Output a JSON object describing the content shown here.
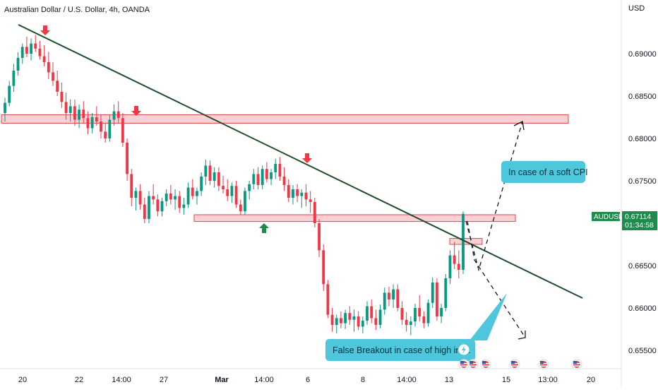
{
  "header": {
    "title": "Australian Dollar / U.S. Dollar, 4h, OANDA",
    "currency": "USD"
  },
  "chart_data": {
    "type": "candlestick",
    "symbol": "AUDUSD",
    "last_price": "0.67114",
    "countdown": "01:34:58",
    "ylim": [
      0.65,
      0.694
    ],
    "y_ticks": [
      "0.69000",
      "0.68500",
      "0.68000",
      "0.67500",
      "0.67000",
      "0.66500",
      "0.66000",
      "0.65500"
    ],
    "x_ticks": [
      "20",
      "22",
      "14:00",
      "27",
      "Mar",
      "14:00",
      "6",
      "8",
      "14:00",
      "13",
      "15",
      "13:00",
      "20"
    ],
    "candle_ohlc": [
      [
        0.683,
        0.6848,
        0.682,
        0.6842
      ],
      [
        0.6842,
        0.6868,
        0.6838,
        0.6862
      ],
      [
        0.6862,
        0.6888,
        0.6855,
        0.688
      ],
      [
        0.688,
        0.6902,
        0.6874,
        0.6895
      ],
      [
        0.6895,
        0.6912,
        0.6888,
        0.6908
      ],
      [
        0.6908,
        0.692,
        0.6896,
        0.69
      ],
      [
        0.69,
        0.6918,
        0.6892,
        0.6912
      ],
      [
        0.6912,
        0.6922,
        0.6902,
        0.6906
      ],
      [
        0.6906,
        0.6915,
        0.6893,
        0.6897
      ],
      [
        0.6897,
        0.691,
        0.6885,
        0.689
      ],
      [
        0.689,
        0.6902,
        0.687,
        0.6878
      ],
      [
        0.6878,
        0.689,
        0.6862,
        0.6868
      ],
      [
        0.6868,
        0.688,
        0.685,
        0.6855
      ],
      [
        0.6855,
        0.6866,
        0.6836,
        0.6843
      ],
      [
        0.6843,
        0.6854,
        0.6822,
        0.683
      ],
      [
        0.683,
        0.6846,
        0.682,
        0.6838
      ],
      [
        0.6838,
        0.6846,
        0.6815,
        0.6822
      ],
      [
        0.6822,
        0.684,
        0.6812,
        0.6834
      ],
      [
        0.6834,
        0.6844,
        0.6818,
        0.6824
      ],
      [
        0.6824,
        0.6832,
        0.6805,
        0.6812
      ],
      [
        0.6812,
        0.683,
        0.6806,
        0.6825
      ],
      [
        0.6825,
        0.6838,
        0.6815,
        0.682
      ],
      [
        0.682,
        0.6828,
        0.68,
        0.6808
      ],
      [
        0.6808,
        0.6818,
        0.6795,
        0.68
      ],
      [
        0.68,
        0.6828,
        0.6796,
        0.6822
      ],
      [
        0.6822,
        0.684,
        0.6815,
        0.6832
      ],
      [
        0.6832,
        0.6844,
        0.6818,
        0.6824
      ],
      [
        0.6824,
        0.683,
        0.679,
        0.6795
      ],
      [
        0.6795,
        0.68,
        0.675,
        0.6758
      ],
      [
        0.6758,
        0.6764,
        0.672,
        0.673
      ],
      [
        0.673,
        0.6742,
        0.6715,
        0.6738
      ],
      [
        0.6738,
        0.6746,
        0.6716,
        0.6722
      ],
      [
        0.6722,
        0.673,
        0.67,
        0.6705
      ],
      [
        0.6705,
        0.6738,
        0.67,
        0.6732
      ],
      [
        0.6732,
        0.6746,
        0.6722,
        0.6728
      ],
      [
        0.6728,
        0.6734,
        0.6708,
        0.6714
      ],
      [
        0.6714,
        0.673,
        0.6708,
        0.6726
      ],
      [
        0.6726,
        0.674,
        0.672,
        0.6735
      ],
      [
        0.6735,
        0.6745,
        0.6722,
        0.6728
      ],
      [
        0.6728,
        0.674,
        0.6716,
        0.6732
      ],
      [
        0.6732,
        0.6738,
        0.6712,
        0.6718
      ],
      [
        0.6718,
        0.673,
        0.671,
        0.6722
      ],
      [
        0.6722,
        0.6748,
        0.6718,
        0.6742
      ],
      [
        0.6742,
        0.6752,
        0.6728,
        0.6732
      ],
      [
        0.6732,
        0.6742,
        0.6722,
        0.6738
      ],
      [
        0.6738,
        0.676,
        0.6732,
        0.6755
      ],
      [
        0.6755,
        0.6775,
        0.6745,
        0.6768
      ],
      [
        0.6768,
        0.6774,
        0.6745,
        0.675
      ],
      [
        0.675,
        0.6766,
        0.6742,
        0.676
      ],
      [
        0.676,
        0.6766,
        0.6738,
        0.6744
      ],
      [
        0.6744,
        0.6756,
        0.6735,
        0.674
      ],
      [
        0.674,
        0.6752,
        0.6726,
        0.6732
      ],
      [
        0.6732,
        0.6748,
        0.6724,
        0.6744
      ],
      [
        0.6744,
        0.675,
        0.6718,
        0.6722
      ],
      [
        0.6722,
        0.6728,
        0.671,
        0.6714
      ],
      [
        0.6714,
        0.6742,
        0.671,
        0.6738
      ],
      [
        0.6738,
        0.675,
        0.6728,
        0.6746
      ],
      [
        0.6746,
        0.6764,
        0.674,
        0.6758
      ],
      [
        0.6758,
        0.6766,
        0.674,
        0.6745
      ],
      [
        0.6745,
        0.6768,
        0.674,
        0.6764
      ],
      [
        0.6764,
        0.6772,
        0.6748,
        0.6752
      ],
      [
        0.6752,
        0.6764,
        0.6745,
        0.676
      ],
      [
        0.676,
        0.6776,
        0.6752,
        0.677
      ],
      [
        0.677,
        0.6778,
        0.675,
        0.6755
      ],
      [
        0.6755,
        0.6766,
        0.6738,
        0.6745
      ],
      [
        0.6745,
        0.6752,
        0.6725,
        0.673
      ],
      [
        0.673,
        0.6745,
        0.6722,
        0.674
      ],
      [
        0.674,
        0.6746,
        0.6725,
        0.6732
      ],
      [
        0.6732,
        0.674,
        0.6718,
        0.6736
      ],
      [
        0.6736,
        0.6746,
        0.672,
        0.6728
      ],
      [
        0.6728,
        0.6738,
        0.6712,
        0.6725
      ],
      [
        0.6725,
        0.673,
        0.6695,
        0.67
      ],
      [
        0.67,
        0.6705,
        0.666,
        0.6668
      ],
      [
        0.6668,
        0.6675,
        0.662,
        0.6628
      ],
      [
        0.6628,
        0.6633,
        0.6588,
        0.6592
      ],
      [
        0.6592,
        0.66,
        0.6572,
        0.658
      ],
      [
        0.658,
        0.6592,
        0.657,
        0.6588
      ],
      [
        0.6588,
        0.6596,
        0.6576,
        0.6582
      ],
      [
        0.6582,
        0.6598,
        0.6575,
        0.6594
      ],
      [
        0.6594,
        0.6602,
        0.658,
        0.6586
      ],
      [
        0.6586,
        0.6598,
        0.6572,
        0.659
      ],
      [
        0.659,
        0.6596,
        0.6574,
        0.6578
      ],
      [
        0.6578,
        0.659,
        0.657,
        0.6585
      ],
      [
        0.6585,
        0.6608,
        0.658,
        0.6602
      ],
      [
        0.6602,
        0.661,
        0.6582,
        0.6588
      ],
      [
        0.6588,
        0.6598,
        0.6574,
        0.658
      ],
      [
        0.658,
        0.6604,
        0.6576,
        0.6598
      ],
      [
        0.6598,
        0.6624,
        0.6592,
        0.6618
      ],
      [
        0.6618,
        0.6625,
        0.6602,
        0.661
      ],
      [
        0.661,
        0.6628,
        0.66,
        0.6622
      ],
      [
        0.6622,
        0.6628,
        0.6596,
        0.66
      ],
      [
        0.66,
        0.6608,
        0.658,
        0.6586
      ],
      [
        0.6586,
        0.6595,
        0.6572,
        0.658
      ],
      [
        0.658,
        0.659,
        0.6568,
        0.6584
      ],
      [
        0.6584,
        0.6605,
        0.6578,
        0.66
      ],
      [
        0.66,
        0.6615,
        0.6584,
        0.659
      ],
      [
        0.659,
        0.6596,
        0.6576,
        0.6582
      ],
      [
        0.6582,
        0.661,
        0.6578,
        0.6606
      ],
      [
        0.6606,
        0.6636,
        0.66,
        0.663
      ],
      [
        0.663,
        0.6635,
        0.6585,
        0.659
      ],
      [
        0.659,
        0.6605,
        0.6582,
        0.66
      ],
      [
        0.66,
        0.664,
        0.6596,
        0.6635
      ],
      [
        0.6635,
        0.6668,
        0.6628,
        0.6662
      ],
      [
        0.6662,
        0.6678,
        0.6646,
        0.6652
      ],
      [
        0.6652,
        0.6668,
        0.6635,
        0.6645
      ],
      [
        0.6645,
        0.6714,
        0.664,
        0.6711
      ]
    ],
    "annotations": {
      "soft_cpi": "In case of a soft CPI",
      "false_breakout": "False Breakout in case of high infla"
    },
    "colors": {
      "up": "#089981",
      "down": "#f23645",
      "trendline": "#1e4d2b",
      "zone_fill": "#f8c9cc",
      "zone_border": "#e0454f",
      "callout": "#4ec6dc",
      "price_badge": "#1f8b4c"
    }
  }
}
